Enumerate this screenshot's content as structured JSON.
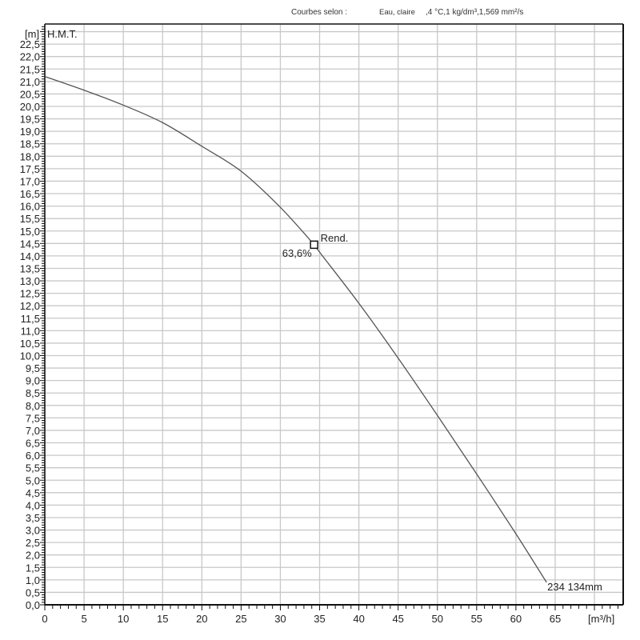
{
  "header": {
    "label": "Courbes selon :",
    "fluid": "Eau, claire",
    "properties": ",4 °C,1 kg/dm³,1,569 mm²/s"
  },
  "colors": {
    "grid": "#c8c8c8",
    "axis": "#111111",
    "curve": "#555555",
    "text": "#222222",
    "background": "#ffffff"
  },
  "chart_data": {
    "type": "line",
    "title": "",
    "subtitle": "Courbes selon : Eau, claire ,4 °C,1 kg/dm³,1,569 mm²/s",
    "xlabel": "[m³/h]",
    "ylabel": "[m]",
    "y_series_label": "H.M.T.",
    "xlim": [
      0,
      73.7
    ],
    "ylim": [
      0,
      23.3
    ],
    "grid": true,
    "legend": null,
    "x_ticks": [
      0,
      5,
      10,
      15,
      20,
      25,
      30,
      35,
      40,
      45,
      50,
      55,
      60,
      65
    ],
    "x_tick_labels": [
      "0",
      "5",
      "10",
      "15",
      "20",
      "25",
      "30",
      "35",
      "40",
      "45",
      "50",
      "55",
      "60",
      "65"
    ],
    "y_ticks": [
      0,
      0.5,
      1,
      1.5,
      2,
      2.5,
      3,
      3.5,
      4,
      4.5,
      5,
      5.5,
      6,
      6.5,
      7,
      7.5,
      8,
      8.5,
      9,
      9.5,
      10,
      10.5,
      11,
      11.5,
      12,
      12.5,
      13,
      13.5,
      14,
      14.5,
      15,
      15.5,
      16,
      16.5,
      17,
      17.5,
      18,
      18.5,
      19,
      19.5,
      20,
      20.5,
      21,
      21.5,
      22,
      22.5
    ],
    "y_tick_labels": [
      "0,0",
      "0,5",
      "1,0",
      "1,5",
      "2,0",
      "2,5",
      "3,0",
      "3,5",
      "4,0",
      "4,5",
      "5,0",
      "5,5",
      "6,0",
      "6,5",
      "7,0",
      "7,5",
      "8,0",
      "8,5",
      "9,0",
      "9,5",
      "10,0",
      "10,5",
      "11,0",
      "11,5",
      "12,0",
      "12,5",
      "13,0",
      "13,5",
      "14,0",
      "14,5",
      "15,0",
      "15,5",
      "16,0",
      "16,5",
      "17,0",
      "17,5",
      "18,0",
      "18,5",
      "19,0",
      "19,5",
      "20,0",
      "20,5",
      "21,0",
      "21,5",
      "22,0",
      "22,5"
    ],
    "series": [
      {
        "name": "234 134mm",
        "x": [
          0,
          5,
          10,
          15,
          20,
          25,
          30,
          34.3,
          35,
          40,
          45,
          50,
          55,
          60,
          63.9
        ],
        "y": [
          21.2,
          20.65,
          20.05,
          19.35,
          18.4,
          17.4,
          15.95,
          14.45,
          14.15,
          12.1,
          9.9,
          7.6,
          5.25,
          2.85,
          0.9
        ]
      }
    ],
    "annotations": [
      {
        "type": "operating-point",
        "x": 34.3,
        "y": 14.45,
        "label": "Rend.",
        "value_label": "63,6%"
      },
      {
        "type": "curve-end-label",
        "x": 63.9,
        "y": 0.9,
        "label": "234 134mm"
      }
    ]
  }
}
